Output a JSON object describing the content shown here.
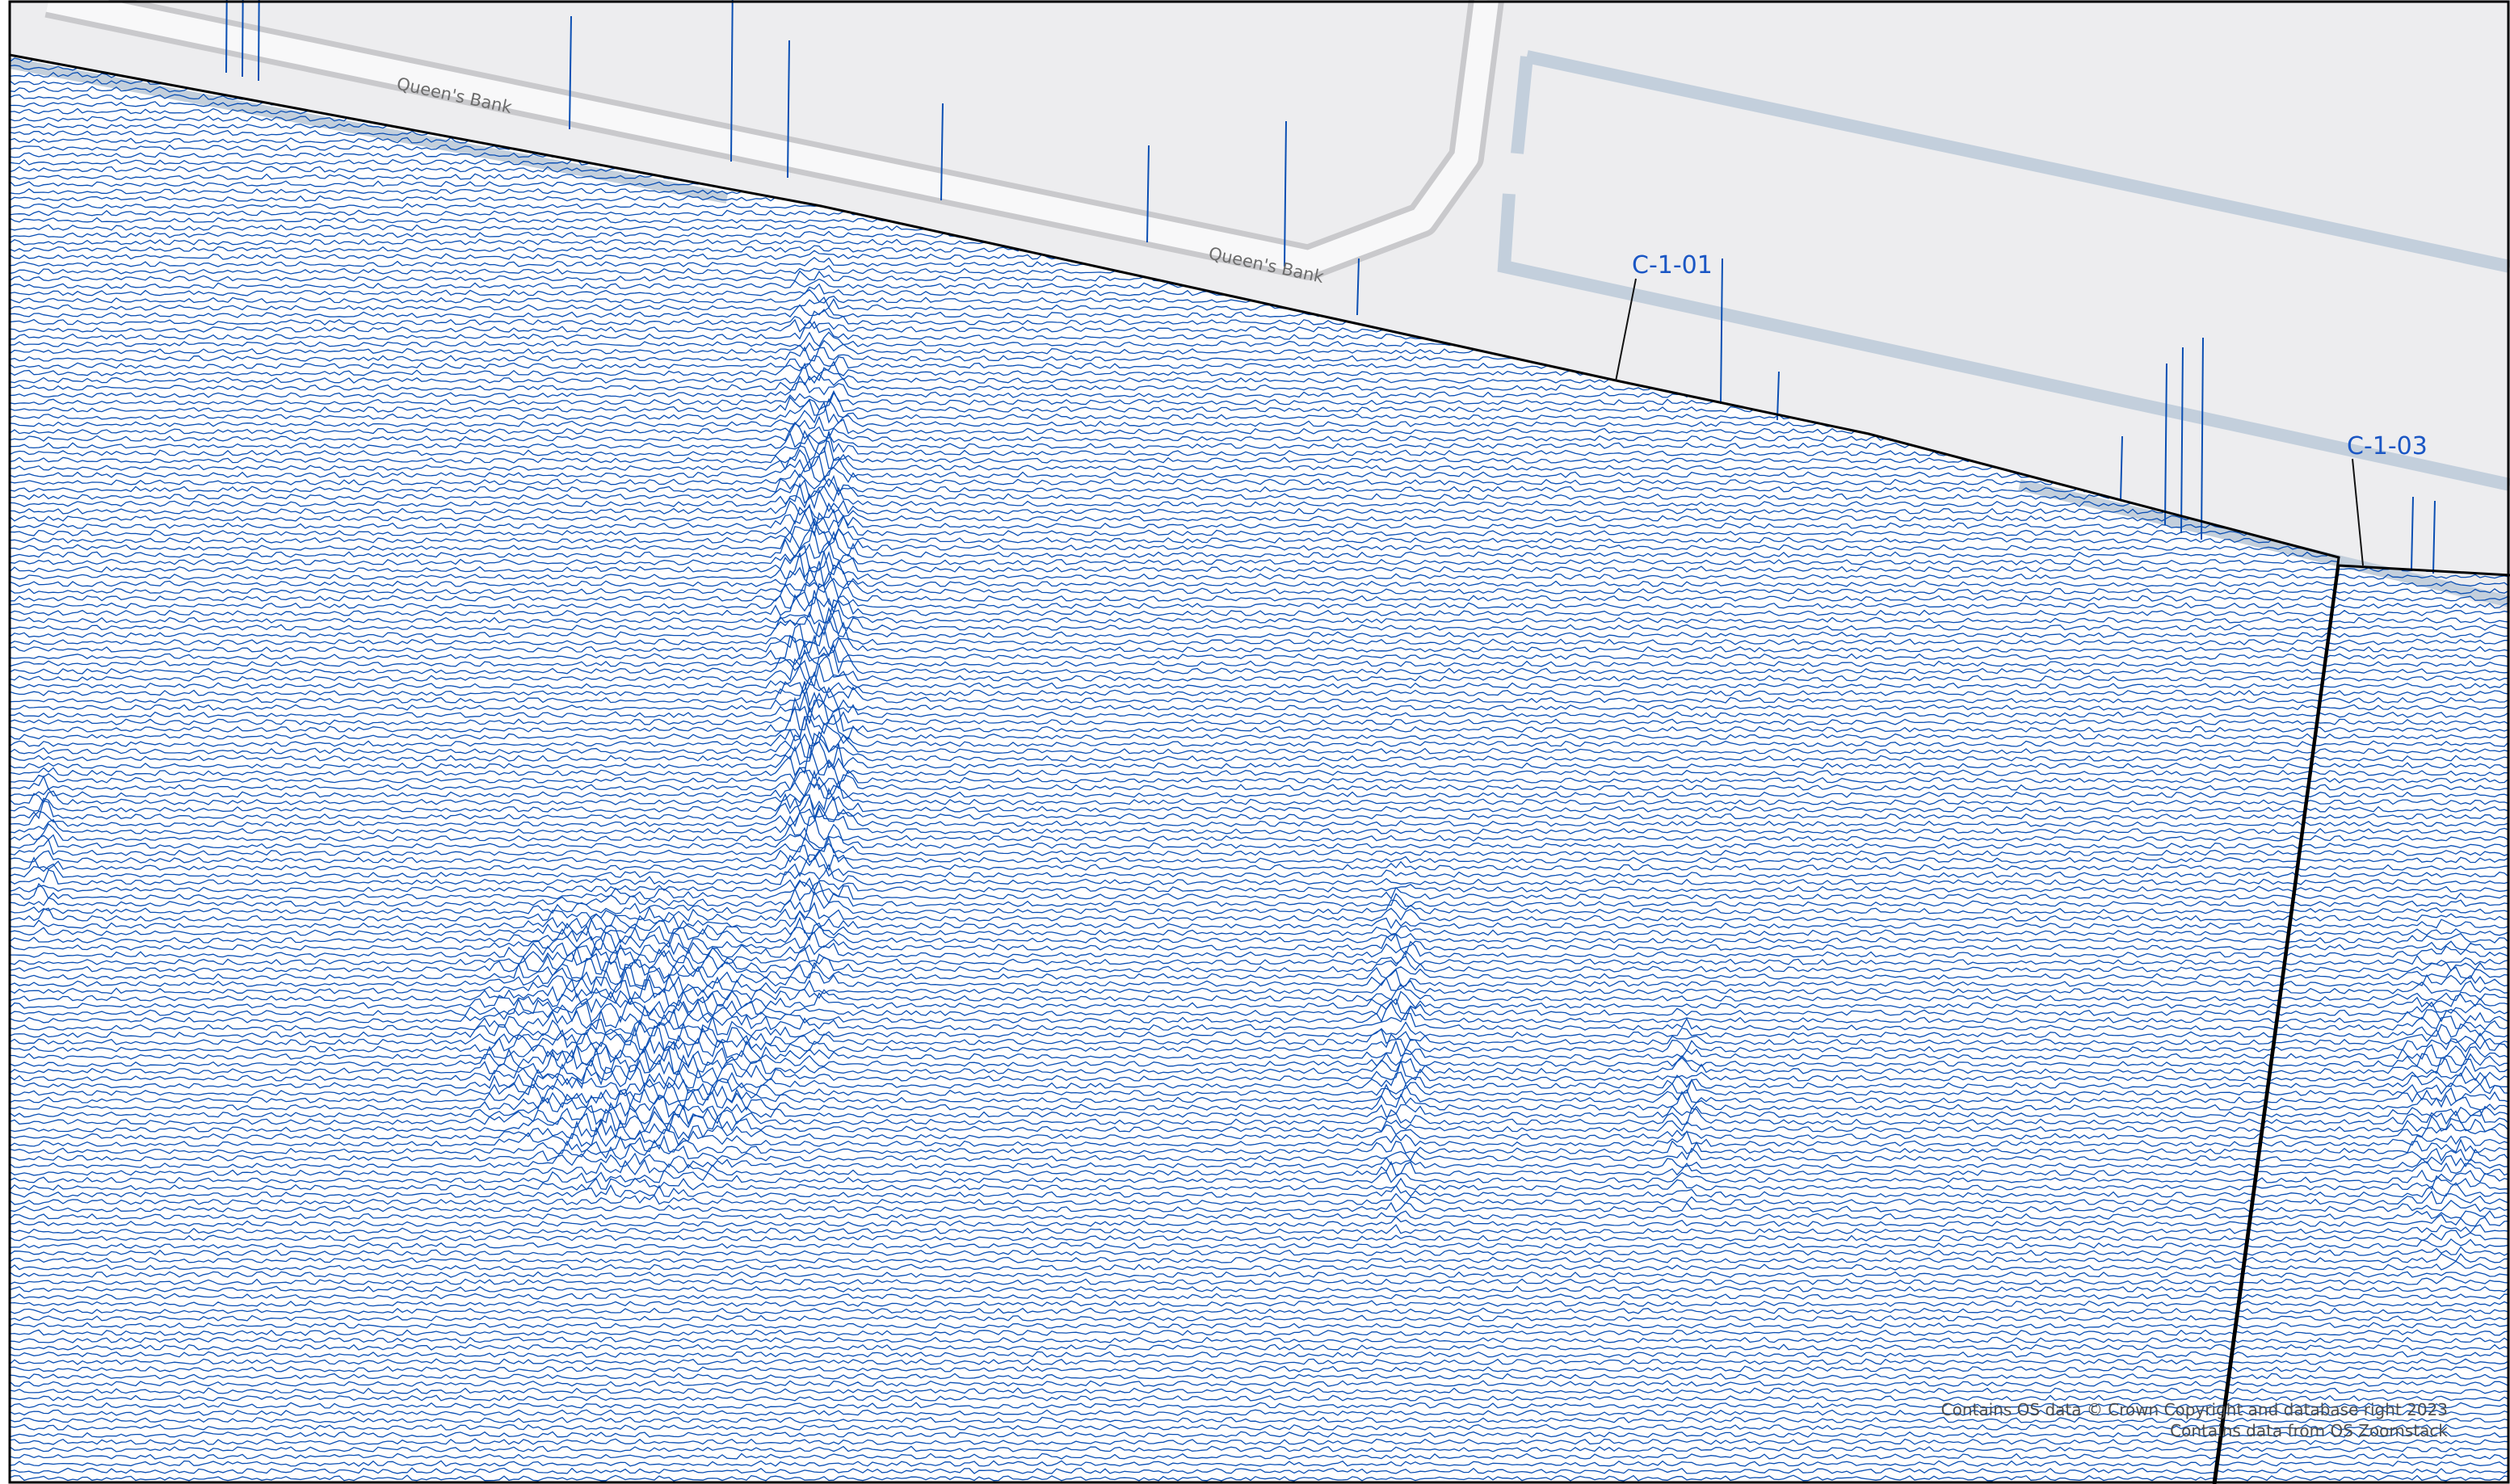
{
  "map": {
    "streets": [
      {
        "name": "Queen's Bank"
      },
      {
        "name": "Queen's Bank"
      }
    ],
    "survey_areas": [
      {
        "label": "C-1-01"
      },
      {
        "label": "C-1-03"
      }
    ],
    "trace_style": "dense wiggle-trace profile lines (geophysical survey)",
    "colors": {
      "trace": "#0b4fb3",
      "basemap_fill": "#ededef",
      "road_edge": "#c9c9cc",
      "path": "#c3cfdc",
      "boundary": "#000000",
      "label": "#1a56c4",
      "background": "#ffffff"
    }
  },
  "attribution": {
    "line1": "Contains OS data © Crown Copyright and database right 2023",
    "line2": "Contains data from OS Zoomstack"
  }
}
